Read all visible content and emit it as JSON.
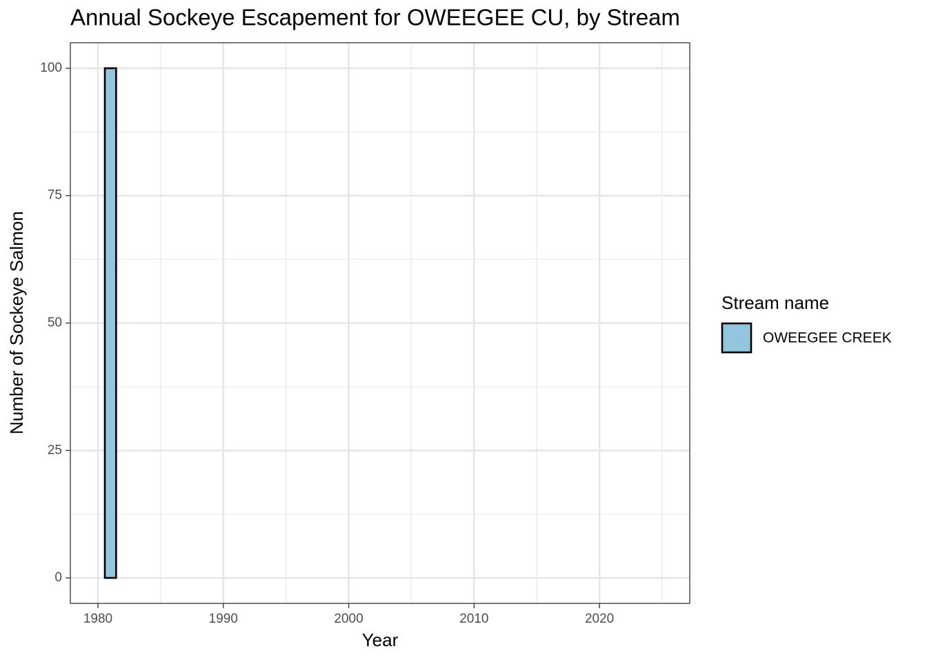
{
  "chart_data": {
    "type": "bar",
    "title": "Annual Sockeye Escapement for OWEEGEE CU, by Stream",
    "x_label": "Year",
    "y_label": "Number of Sockeye Salmon",
    "legend_title": "Stream name",
    "x": [
      1981
    ],
    "series": [
      {
        "name": "OWEEGEE CREEK",
        "color": "#92c5de",
        "values": [
          100
        ]
      }
    ],
    "xlim": [
      1977.8,
      2027.2
    ],
    "xticks": [
      1980,
      1990,
      2000,
      2010,
      2020
    ],
    "ylim": [
      -5,
      105
    ],
    "yticks": [
      0,
      25,
      50,
      75,
      100
    ],
    "grid": true,
    "legend_position": "right"
  }
}
